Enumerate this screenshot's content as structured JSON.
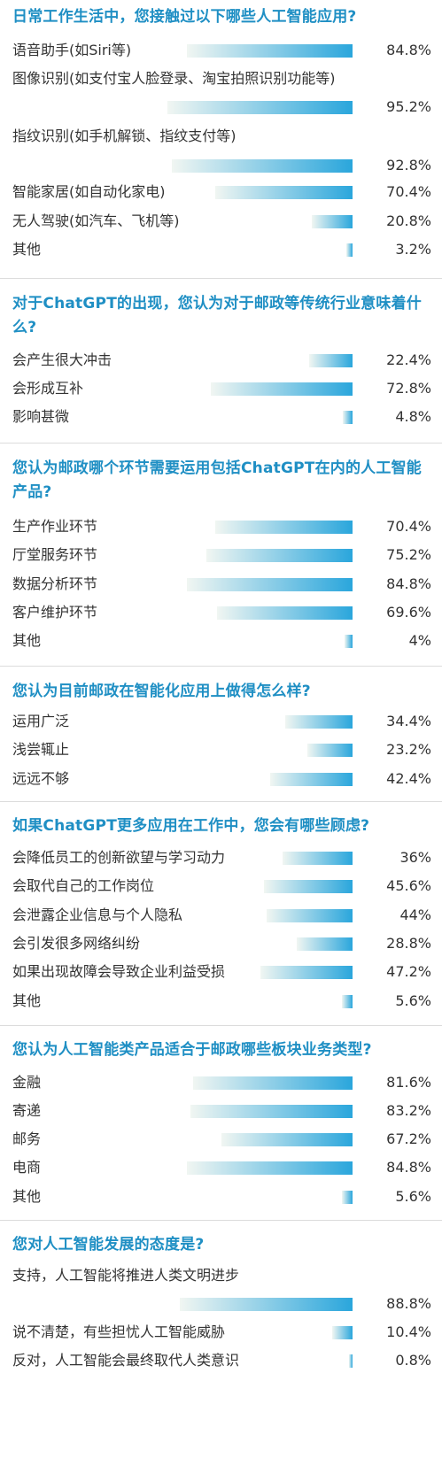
{
  "accent": "#1f8fc4",
  "bar_gradient": [
    "#f1f6f2",
    "#2aa6dc"
  ],
  "chart_data": [
    {
      "type": "bar",
      "title": "日常工作生活中，您接触过以下哪些人工智能应用?",
      "categories": [
        "语音助手(如Siri等)",
        "图像识别(如支付宝人脸登录、淘宝拍照识别功能等)",
        "指纹识别(如手机解锁、指纹支付等)",
        "智能家居(如自动化家电)",
        "无人驾驶(如汽车、飞机等)",
        "其他"
      ],
      "values": [
        84.8,
        95.2,
        92.8,
        70.4,
        20.8,
        3.2
      ],
      "labels": [
        "84.8%",
        "95.2%",
        "92.8%",
        "70.4%",
        "20.8%",
        "3.2%"
      ],
      "xlim": [
        0,
        100
      ]
    },
    {
      "type": "bar",
      "title": "对于ChatGPT的出现，您认为对于邮政等传统行业意味着什么?",
      "categories": [
        "会产生很大冲击",
        "会形成互补",
        "影响甚微"
      ],
      "values": [
        22.4,
        72.8,
        4.8
      ],
      "labels": [
        "22.4%",
        "72.8%",
        "4.8%"
      ],
      "xlim": [
        0,
        100
      ]
    },
    {
      "type": "bar",
      "title": "您认为邮政哪个环节需要运用包括ChatGPT在内的人工智能产品?",
      "categories": [
        "生产作业环节",
        "厅堂服务环节",
        "数据分析环节",
        "客户维护环节",
        "其他"
      ],
      "values": [
        70.4,
        75.2,
        84.8,
        69.6,
        4
      ],
      "labels": [
        "70.4%",
        "75.2%",
        "84.8%",
        "69.6%",
        "4%"
      ],
      "xlim": [
        0,
        100
      ]
    },
    {
      "type": "bar",
      "title": "您认为目前邮政在智能化应用上做得怎么样?",
      "categories": [
        "运用广泛",
        "浅尝辄止",
        "远远不够"
      ],
      "values": [
        34.4,
        23.2,
        42.4
      ],
      "labels": [
        "34.4%",
        "23.2%",
        "42.4%"
      ],
      "xlim": [
        0,
        100
      ]
    },
    {
      "type": "bar",
      "title": "如果ChatGPT更多应用在工作中，您会有哪些顾虑?",
      "categories": [
        "会降低员工的创新欲望与学习动力",
        "会取代自己的工作岗位",
        "会泄露企业信息与个人隐私",
        "会引发很多网络纠纷",
        "如果出现故障会导致企业利益受损",
        "其他"
      ],
      "values": [
        36,
        45.6,
        44,
        28.8,
        47.2,
        5.6
      ],
      "labels": [
        "36%",
        "45.6%",
        "44%",
        "28.8%",
        "47.2%",
        "5.6%"
      ],
      "xlim": [
        0,
        100
      ]
    },
    {
      "type": "bar",
      "title": "您认为人工智能类产品适合于邮政哪些板块业务类型?",
      "categories": [
        "金融",
        "寄递",
        "邮务",
        "电商",
        "其他"
      ],
      "values": [
        81.6,
        83.2,
        67.2,
        84.8,
        5.6
      ],
      "labels": [
        "81.6%",
        "83.2%",
        "67.2%",
        "84.8%",
        "5.6%"
      ],
      "xlim": [
        0,
        100
      ]
    },
    {
      "type": "bar",
      "title": "您对人工智能发展的态度是?",
      "categories": [
        "支持，人工智能将推进人类文明进步",
        "说不清楚，有些担忧人工智能威胁",
        "反对，人工智能会最终取代人类意识"
      ],
      "values": [
        88.8,
        10.4,
        0.8
      ],
      "labels": [
        "88.8%",
        "10.4%",
        "0.8%"
      ],
      "xlim": [
        0,
        100
      ]
    }
  ]
}
